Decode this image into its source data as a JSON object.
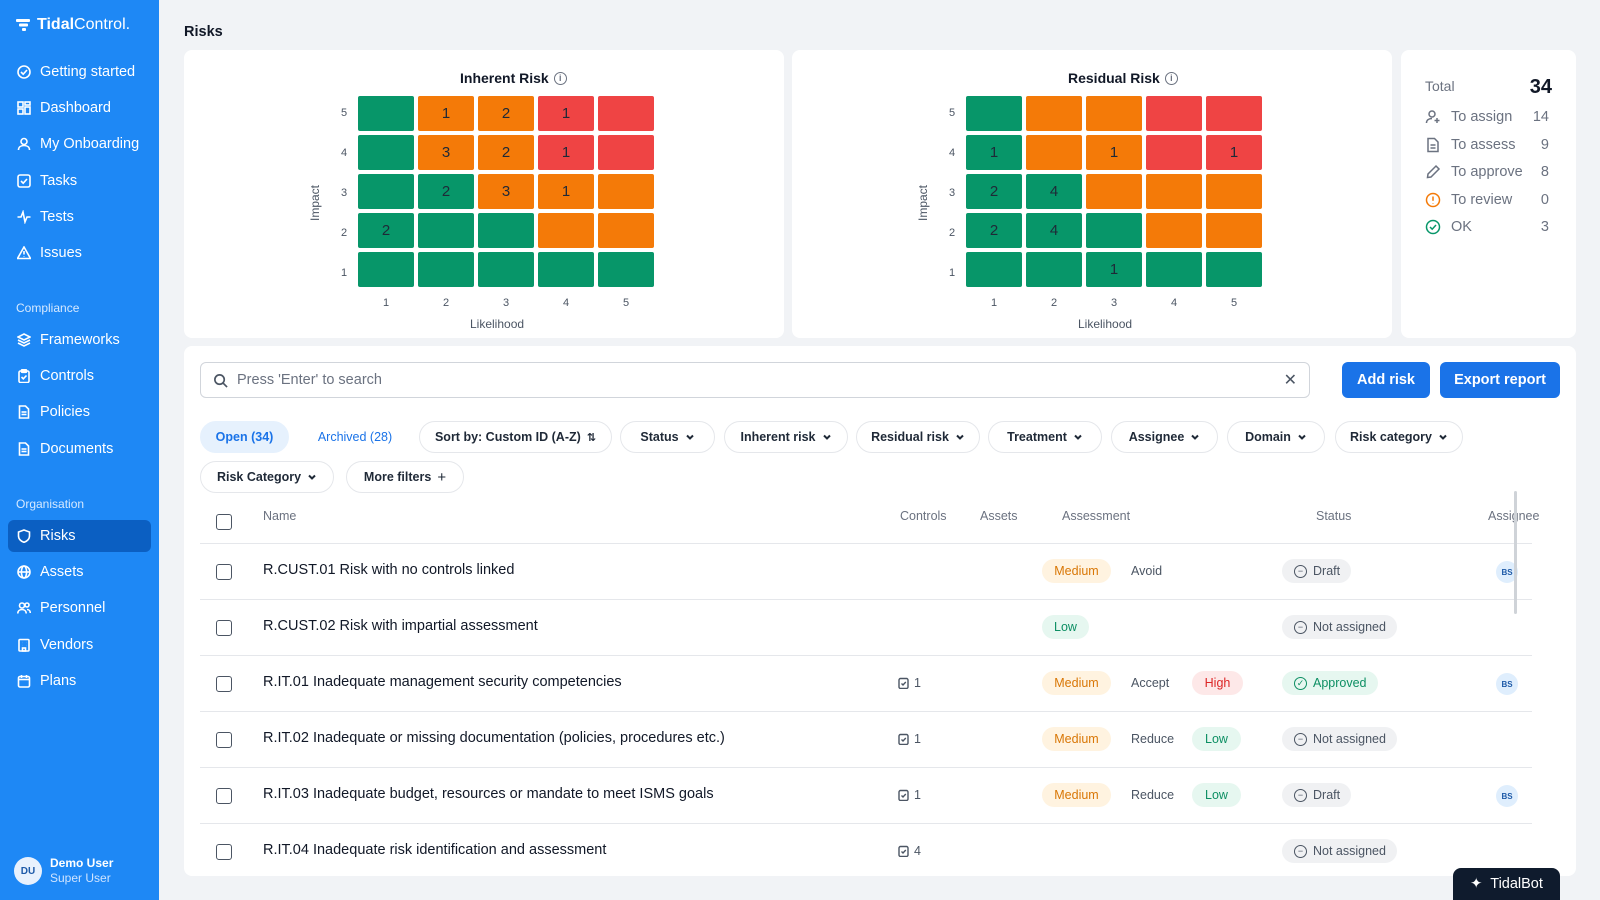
{
  "app": {
    "brand_bold": "Tidal",
    "brand_light": "Control."
  },
  "sidebar": {
    "items": [
      {
        "label": "Getting started",
        "icon": "check-circle-icon"
      },
      {
        "label": "Dashboard",
        "icon": "dashboard-icon"
      },
      {
        "label": "My Onboarding",
        "icon": "user-icon"
      },
      {
        "label": "Tasks",
        "icon": "task-check-icon"
      },
      {
        "label": "Tests",
        "icon": "pulse-icon"
      },
      {
        "label": "Issues",
        "icon": "warning-icon"
      }
    ],
    "compliance_label": "Compliance",
    "compliance_items": [
      {
        "label": "Frameworks",
        "icon": "layers-icon"
      },
      {
        "label": "Controls",
        "icon": "clipboard-icon"
      },
      {
        "label": "Policies",
        "icon": "file-icon"
      },
      {
        "label": "Documents",
        "icon": "file-icon"
      }
    ],
    "organisation_label": "Organisation",
    "organisation_items": [
      {
        "label": "Risks",
        "icon": "shield-icon",
        "active": true
      },
      {
        "label": "Assets",
        "icon": "globe-icon"
      },
      {
        "label": "Personnel",
        "icon": "users-icon"
      },
      {
        "label": "Vendors",
        "icon": "building-icon"
      },
      {
        "label": "Plans",
        "icon": "calendar-icon"
      }
    ],
    "user": {
      "initials": "DU",
      "name": "Demo User",
      "role": "Super User"
    }
  },
  "page": {
    "title": "Risks"
  },
  "inherent": {
    "title": "Inherent Risk",
    "y_label": "Impact",
    "x_label": "Likelihood",
    "rows": [
      [
        {
          "c": "g",
          "v": ""
        },
        {
          "c": "o",
          "v": "1"
        },
        {
          "c": "o",
          "v": "2"
        },
        {
          "c": "r",
          "v": "1"
        },
        {
          "c": "r",
          "v": ""
        }
      ],
      [
        {
          "c": "g",
          "v": ""
        },
        {
          "c": "o",
          "v": "3"
        },
        {
          "c": "o",
          "v": "2"
        },
        {
          "c": "r",
          "v": "1"
        },
        {
          "c": "r",
          "v": ""
        }
      ],
      [
        {
          "c": "g",
          "v": ""
        },
        {
          "c": "g",
          "v": "2"
        },
        {
          "c": "o",
          "v": "3"
        },
        {
          "c": "o",
          "v": "1"
        },
        {
          "c": "o",
          "v": ""
        }
      ],
      [
        {
          "c": "g",
          "v": "2"
        },
        {
          "c": "g",
          "v": ""
        },
        {
          "c": "g",
          "v": ""
        },
        {
          "c": "o",
          "v": ""
        },
        {
          "c": "o",
          "v": ""
        }
      ],
      [
        {
          "c": "g",
          "v": ""
        },
        {
          "c": "g",
          "v": ""
        },
        {
          "c": "g",
          "v": ""
        },
        {
          "c": "g",
          "v": ""
        },
        {
          "c": "g",
          "v": ""
        }
      ]
    ]
  },
  "residual": {
    "title": "Residual Risk",
    "y_label": "Impact",
    "x_label": "Likelihood",
    "rows": [
      [
        {
          "c": "g",
          "v": ""
        },
        {
          "c": "o",
          "v": ""
        },
        {
          "c": "o",
          "v": ""
        },
        {
          "c": "r",
          "v": ""
        },
        {
          "c": "r",
          "v": ""
        }
      ],
      [
        {
          "c": "g",
          "v": "1"
        },
        {
          "c": "o",
          "v": ""
        },
        {
          "c": "o",
          "v": "1"
        },
        {
          "c": "r",
          "v": ""
        },
        {
          "c": "r",
          "v": "1"
        }
      ],
      [
        {
          "c": "g",
          "v": "2"
        },
        {
          "c": "g",
          "v": "4"
        },
        {
          "c": "o",
          "v": ""
        },
        {
          "c": "o",
          "v": ""
        },
        {
          "c": "o",
          "v": ""
        }
      ],
      [
        {
          "c": "g",
          "v": "2"
        },
        {
          "c": "g",
          "v": "4"
        },
        {
          "c": "g",
          "v": ""
        },
        {
          "c": "o",
          "v": ""
        },
        {
          "c": "o",
          "v": ""
        }
      ],
      [
        {
          "c": "g",
          "v": ""
        },
        {
          "c": "g",
          "v": ""
        },
        {
          "c": "g",
          "v": "1"
        },
        {
          "c": "g",
          "v": ""
        },
        {
          "c": "g",
          "v": ""
        }
      ]
    ]
  },
  "axis_ticks": {
    "y": [
      "5",
      "4",
      "3",
      "2",
      "1"
    ],
    "x": [
      "1",
      "2",
      "3",
      "4",
      "5"
    ]
  },
  "colors": {
    "g": "#079669",
    "o": "#f47a08",
    "r": "#ef4444",
    "accent": "#1a73e8",
    "sidebar": "#1e88f5"
  },
  "totals": {
    "label": "Total",
    "value": "34",
    "rows": [
      {
        "label": "To assign",
        "value": "14",
        "icon": "user-plus-icon"
      },
      {
        "label": "To assess",
        "value": "9",
        "icon": "document-icon"
      },
      {
        "label": "To approve",
        "value": "8",
        "icon": "pencil-icon"
      },
      {
        "label": "To review",
        "value": "0",
        "icon": "alert-circle-icon"
      },
      {
        "label": "OK",
        "value": "3",
        "icon": "check-circle-icon"
      }
    ]
  },
  "toolbar": {
    "search_placeholder": "Press 'Enter' to search",
    "add_risk": "Add risk",
    "export_report": "Export report"
  },
  "filters": {
    "open_tab": "Open (34)",
    "archived_tab": "Archived (28)",
    "sort": "Sort by: Custom ID (A-Z)",
    "chips": [
      "Status",
      "Inherent risk",
      "Residual risk",
      "Treatment",
      "Assignee",
      "Domain",
      "Risk category",
      "Risk Category"
    ],
    "more_filters": "More filters"
  },
  "table": {
    "headers": {
      "name": "Name",
      "controls": "Controls",
      "assets": "Assets",
      "assessment": "Assessment",
      "status": "Status",
      "assignee": "Assignee"
    },
    "rows": [
      {
        "name": "R.CUST.01 Risk with no controls linked",
        "controls": "",
        "inherent": "Medium",
        "treatment": "Avoid",
        "residual": "",
        "status": "Draft",
        "assignee": "BS"
      },
      {
        "name": "R.CUST.02 Risk with impartial assessment",
        "controls": "",
        "inherent": "Low",
        "treatment": "",
        "residual": "",
        "status": "Not assigned",
        "assignee": ""
      },
      {
        "name": "R.IT.01 Inadequate management security competencies",
        "controls": "1",
        "inherent": "Medium",
        "treatment": "Accept",
        "residual": "High",
        "status": "Approved",
        "assignee": "BS"
      },
      {
        "name": "R.IT.02 Inadequate or missing documentation (policies, procedures etc.)",
        "controls": "1",
        "inherent": "Medium",
        "treatment": "Reduce",
        "residual": "Low",
        "status": "Not assigned",
        "assignee": ""
      },
      {
        "name": "R.IT.03 Inadequate budget, resources or mandate to meet ISMS goals",
        "controls": "1",
        "inherent": "Medium",
        "treatment": "Reduce",
        "residual": "Low",
        "status": "Draft",
        "assignee": "BS"
      },
      {
        "name": "R.IT.04 Inadequate risk identification and assessment",
        "controls": "4",
        "inherent": "",
        "treatment": "",
        "residual": "",
        "status": "Not assigned",
        "assignee": ""
      }
    ]
  },
  "tidalbot": {
    "label": "TidalBot"
  }
}
